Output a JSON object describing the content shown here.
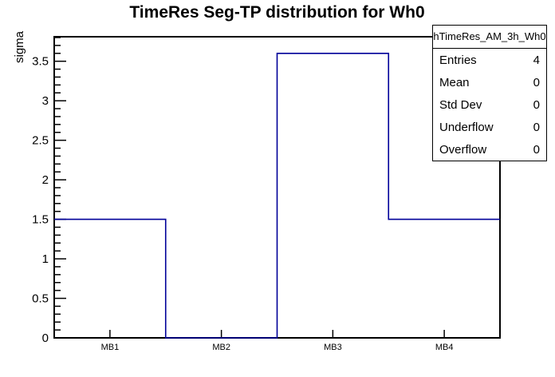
{
  "chart_data": {
    "type": "bar",
    "style": "step-outline-histogram",
    "title": "TimeRes Seg-TP distribution for Wh0",
    "xlabel": "",
    "ylabel": "sigma",
    "categories": [
      "MB1",
      "MB2",
      "MB3",
      "MB4"
    ],
    "values": [
      1.5,
      0,
      3.6,
      1.5
    ],
    "ylim": [
      0,
      3.81
    ],
    "y_major_ticks": [
      0,
      0.5,
      1,
      1.5,
      2,
      2.5,
      3,
      3.5
    ],
    "y_minor_step": 0.1,
    "grid": false,
    "legend": false,
    "line_color": "#000099",
    "frame_color": "#000000",
    "background_color": "#ffffff"
  },
  "stats": {
    "header": "hTimeRes_AM_3h_Wh0",
    "rows": [
      {
        "label": "Entries",
        "value": "4"
      },
      {
        "label": "Mean",
        "value": "0"
      },
      {
        "label": "Std Dev",
        "value": "0"
      },
      {
        "label": "Underflow",
        "value": "0"
      },
      {
        "label": "Overflow",
        "value": "0"
      }
    ]
  }
}
